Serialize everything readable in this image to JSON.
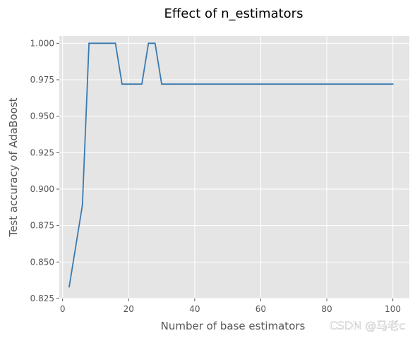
{
  "chart_data": {
    "type": "line",
    "title": "Effect of n_estimators",
    "xlabel": "Number of base estimators",
    "ylabel": "Test accuracy of AdaBoost",
    "xlim": [
      -1,
      105
    ],
    "ylim": [
      0.825,
      1.005
    ],
    "x_ticks": [
      0,
      20,
      40,
      60,
      80,
      100
    ],
    "y_ticks": [
      0.825,
      0.85,
      0.875,
      0.9,
      0.925,
      0.95,
      0.975,
      1.0
    ],
    "x_tick_labels": [
      "0",
      "20",
      "40",
      "60",
      "80",
      "100"
    ],
    "y_tick_labels": [
      "0.825",
      "0.850",
      "0.875",
      "0.900",
      "0.925",
      "0.950",
      "0.975",
      "1.000"
    ],
    "grid": true,
    "series": [
      {
        "color": "#3a7ab0",
        "x": [
          2,
          4,
          6,
          8,
          10,
          12,
          14,
          16,
          18,
          20,
          22,
          24,
          26,
          28,
          30,
          32,
          34,
          36,
          38,
          40,
          42,
          44,
          46,
          48,
          50,
          52,
          54,
          56,
          58,
          60,
          62,
          64,
          66,
          68,
          70,
          72,
          74,
          76,
          78,
          80,
          82,
          84,
          86,
          88,
          90,
          92,
          94,
          96,
          98,
          100
        ],
        "y": [
          0.833,
          0.861,
          0.889,
          1.0,
          1.0,
          1.0,
          1.0,
          1.0,
          0.972,
          0.972,
          0.972,
          0.972,
          1.0,
          1.0,
          0.972,
          0.972,
          0.972,
          0.972,
          0.972,
          0.972,
          0.972,
          0.972,
          0.972,
          0.972,
          0.972,
          0.972,
          0.972,
          0.972,
          0.972,
          0.972,
          0.972,
          0.972,
          0.972,
          0.972,
          0.972,
          0.972,
          0.972,
          0.972,
          0.972,
          0.972,
          0.972,
          0.972,
          0.972,
          0.972,
          0.972,
          0.972,
          0.972,
          0.972,
          0.972,
          0.972
        ]
      }
    ]
  },
  "watermark": {
    "text": "CSDN @马老c"
  },
  "style": {
    "plot_background": "#e5e5e5",
    "grid_color": "#ffffff",
    "text_color": "#555555"
  }
}
